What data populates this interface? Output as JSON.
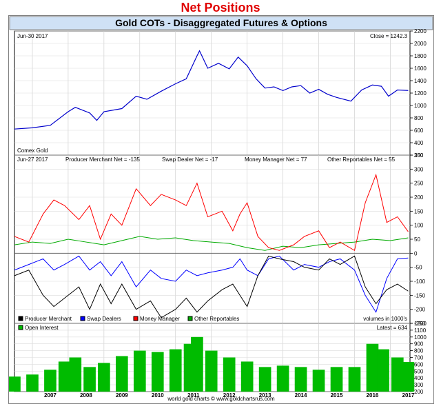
{
  "page_title": "Net Positions",
  "chart_title": "Gold COTs - Disaggregated Futures & Options",
  "footer": "world gold charts © www.goldchartsrus.com",
  "colors": {
    "price": "#0000cc",
    "producer": "#000000",
    "swap": "#0000ff",
    "money": "#ff0000",
    "other": "#00aa00",
    "open_interest": "#00bb00",
    "title_bar": "#cfe1f5",
    "title_red": "#e00000"
  },
  "chart_data": [
    {
      "type": "line",
      "panel": "price",
      "header_left": "Jun-30  2017",
      "header_right": "Close = 1242.3",
      "corner_label": "Comex Gold",
      "ylim": [
        200,
        2200
      ],
      "yticks": [
        200,
        400,
        600,
        800,
        1000,
        1200,
        1400,
        1600,
        1800,
        2000,
        2200
      ],
      "series": [
        {
          "key": "price",
          "x": [
            2006.5,
            2007.0,
            2007.5,
            2008.0,
            2008.2,
            2008.6,
            2008.8,
            2009.0,
            2009.5,
            2009.9,
            2010.2,
            2010.6,
            2011.0,
            2011.3,
            2011.6,
            2011.67,
            2011.9,
            2012.2,
            2012.5,
            2012.75,
            2013.0,
            2013.25,
            2013.5,
            2013.75,
            2014.0,
            2014.25,
            2014.5,
            2014.75,
            2015.0,
            2015.25,
            2015.5,
            2015.9,
            2016.2,
            2016.5,
            2016.75,
            2016.95,
            2017.2,
            2017.5
          ],
          "values": [
            620,
            640,
            680,
            900,
            970,
            880,
            760,
            900,
            950,
            1150,
            1100,
            1230,
            1350,
            1430,
            1800,
            1880,
            1600,
            1680,
            1590,
            1780,
            1640,
            1430,
            1280,
            1300,
            1240,
            1300,
            1320,
            1200,
            1260,
            1180,
            1130,
            1070,
            1250,
            1330,
            1310,
            1150,
            1250,
            1242
          ]
        }
      ]
    },
    {
      "type": "line",
      "panel": "net_positions",
      "header": [
        "Jun-27  2017",
        "Producer Merchant Net = -135",
        "Swap Dealer Net = -17",
        "Money Manager Net = 77",
        "Other Reportables Net = 55"
      ],
      "ylim": [
        -250,
        350
      ],
      "yticks": [
        -250,
        -200,
        -150,
        -100,
        -50,
        0,
        50,
        100,
        150,
        200,
        250,
        300,
        350
      ],
      "legend": [
        "Producer Merchant",
        "Swap Dealers",
        "Money Manager",
        "Other Reportables"
      ],
      "units_note": "volumes in 1000's",
      "series": [
        {
          "key": "producer",
          "name": "Producer Merchant",
          "x": [
            2006.5,
            2006.9,
            2007.3,
            2007.6,
            2007.9,
            2008.3,
            2008.6,
            2008.9,
            2009.2,
            2009.5,
            2009.9,
            2010.3,
            2010.6,
            2011.0,
            2011.3,
            2011.6,
            2011.9,
            2012.3,
            2012.6,
            2012.8,
            2013.0,
            2013.3,
            2013.6,
            2013.9,
            2014.3,
            2014.6,
            2015.0,
            2015.3,
            2015.6,
            2016.0,
            2016.3,
            2016.6,
            2016.9,
            2017.2,
            2017.5
          ],
          "values": [
            -80,
            -60,
            -150,
            -190,
            -160,
            -120,
            -200,
            -110,
            -180,
            -110,
            -200,
            -170,
            -230,
            -200,
            -160,
            -210,
            -170,
            -130,
            -110,
            -150,
            -190,
            -80,
            -10,
            -20,
            -30,
            -50,
            -60,
            -20,
            -40,
            -10,
            -120,
            -180,
            -130,
            -110,
            -135
          ]
        },
        {
          "key": "swap",
          "name": "Swap Dealers",
          "x": [
            2006.5,
            2006.9,
            2007.3,
            2007.6,
            2007.9,
            2008.3,
            2008.6,
            2008.9,
            2009.2,
            2009.5,
            2009.9,
            2010.3,
            2010.6,
            2011.0,
            2011.3,
            2011.6,
            2011.9,
            2012.3,
            2012.6,
            2012.8,
            2013.0,
            2013.3,
            2013.6,
            2013.9,
            2014.3,
            2014.6,
            2015.0,
            2015.3,
            2015.6,
            2016.0,
            2016.3,
            2016.6,
            2016.9,
            2017.2,
            2017.5
          ],
          "values": [
            -60,
            -40,
            -20,
            -60,
            -40,
            -10,
            -60,
            -30,
            -80,
            -30,
            -120,
            -60,
            -90,
            -100,
            -60,
            -80,
            -70,
            -60,
            -50,
            -20,
            -60,
            -80,
            -20,
            -10,
            -60,
            -40,
            -50,
            -30,
            -20,
            -60,
            -150,
            -210,
            -90,
            -20,
            -17
          ]
        },
        {
          "key": "money",
          "name": "Money Manager",
          "x": [
            2006.5,
            2006.9,
            2007.3,
            2007.6,
            2007.9,
            2008.3,
            2008.6,
            2008.9,
            2009.2,
            2009.5,
            2009.9,
            2010.3,
            2010.6,
            2011.0,
            2011.3,
            2011.6,
            2011.9,
            2012.3,
            2012.6,
            2012.8,
            2013.0,
            2013.3,
            2013.6,
            2013.9,
            2014.3,
            2014.6,
            2015.0,
            2015.3,
            2015.6,
            2016.0,
            2016.3,
            2016.6,
            2016.9,
            2017.2,
            2017.5
          ],
          "values": [
            60,
            40,
            140,
            190,
            170,
            120,
            170,
            50,
            140,
            100,
            230,
            170,
            210,
            190,
            170,
            250,
            130,
            150,
            80,
            140,
            180,
            60,
            20,
            10,
            30,
            60,
            80,
            20,
            40,
            10,
            180,
            280,
            110,
            130,
            77
          ]
        },
        {
          "key": "other",
          "name": "Other Reportables",
          "x": [
            2006.5,
            2007.0,
            2007.5,
            2008.0,
            2008.5,
            2009.0,
            2009.5,
            2010.0,
            2010.5,
            2011.0,
            2011.5,
            2012.0,
            2012.5,
            2013.0,
            2013.5,
            2014.0,
            2014.5,
            2015.0,
            2015.5,
            2016.0,
            2016.5,
            2017.0,
            2017.5
          ],
          "values": [
            30,
            40,
            35,
            50,
            40,
            30,
            45,
            60,
            50,
            55,
            45,
            40,
            35,
            20,
            10,
            25,
            20,
            30,
            35,
            40,
            50,
            45,
            55
          ]
        }
      ]
    },
    {
      "type": "bar",
      "panel": "open_interest",
      "legend": [
        "Open Interest"
      ],
      "header_right": "Latest = 634",
      "ylim": [
        200,
        1200
      ],
      "yticks": [
        200,
        300,
        400,
        500,
        600,
        700,
        800,
        900,
        1000,
        1100,
        1200
      ],
      "x": [
        2006.5,
        2007.0,
        2007.5,
        2007.9,
        2008.2,
        2008.6,
        2009.0,
        2009.5,
        2010.0,
        2010.5,
        2011.0,
        2011.4,
        2011.6,
        2012.0,
        2012.5,
        2013.0,
        2013.5,
        2014.0,
        2014.5,
        2015.0,
        2015.5,
        2016.0,
        2016.5,
        2016.8,
        2017.2,
        2017.5
      ],
      "values": [
        420,
        450,
        520,
        640,
        700,
        560,
        620,
        720,
        800,
        780,
        820,
        900,
        1000,
        800,
        700,
        640,
        560,
        580,
        560,
        520,
        560,
        560,
        900,
        820,
        700,
        634
      ]
    }
  ],
  "x_axis": {
    "xlim": [
      2006.5,
      2017.55
    ],
    "year_labels": [
      "2007",
      "2008",
      "2009",
      "2010",
      "2011",
      "2012",
      "2013",
      "2014",
      "2015",
      "2016",
      "2017"
    ]
  }
}
